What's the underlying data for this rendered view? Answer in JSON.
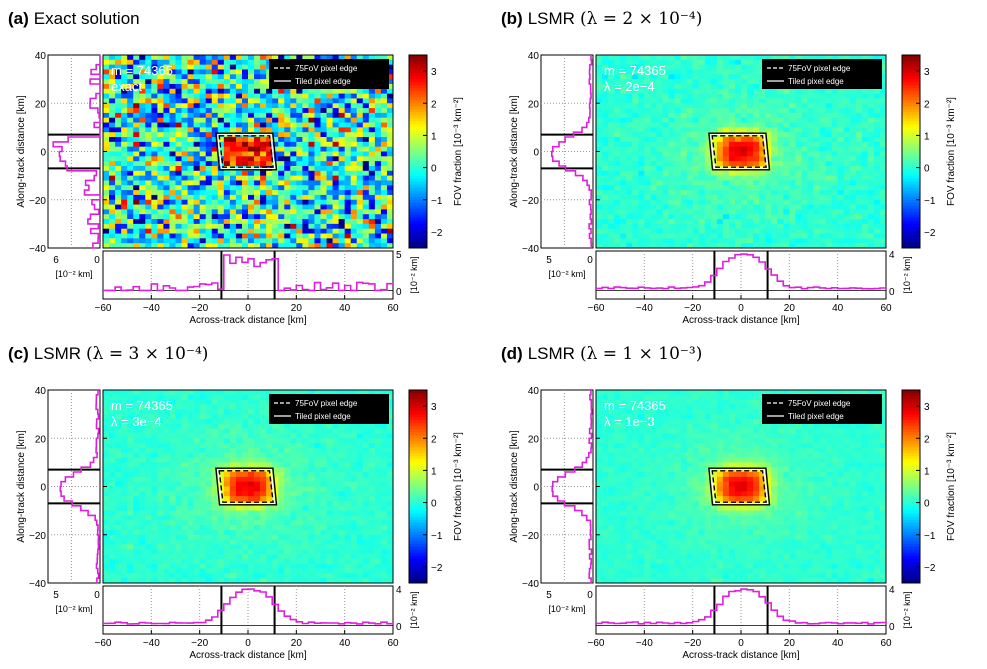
{
  "chart_data": [
    {
      "type": "heatmap",
      "panel_label": "(a)",
      "title": "Exact solution",
      "title_lambda": "",
      "annot_lines": [
        "m = 74365",
        "exact"
      ],
      "noise": "high",
      "xlabel": "Across-track distance [km]",
      "ylabel": "Along-track distance [km]",
      "xlim": [
        -60,
        60
      ],
      "ylim": [
        -40,
        40
      ],
      "xticks": [
        "−60",
        "−40",
        "−20",
        "0",
        "20",
        "40",
        "60"
      ],
      "yticks": [
        "40",
        "20",
        "0",
        "−20",
        "−40"
      ],
      "colorbar_label": "FOV fraction [10⁻³ km⁻²]",
      "colorbar_ticks": [
        "3",
        "2",
        "1",
        "0",
        "−1",
        "−2"
      ],
      "colorbar_range": [
        -2.5,
        3.5
      ],
      "legend": [
        "75FoV pixel edge",
        "Tiled pixel edge"
      ],
      "left_profile_ticks": [
        "6",
        "0"
      ],
      "left_profile_max": 6,
      "bottom_profile_ticks": [
        "5",
        "0"
      ],
      "bottom_profile_max": 5,
      "profile_unit": "[10⁻² km]"
    },
    {
      "type": "heatmap",
      "panel_label": "(b)",
      "title": "LSMR",
      "title_lambda": "(λ = 2 × 10⁻⁴)",
      "annot_lines": [
        "m = 74365",
        "λ = 2e−4"
      ],
      "noise": "low",
      "xlabel": "Across-track distance [km]",
      "ylabel": "Along-track distance [km]",
      "xlim": [
        -60,
        60
      ],
      "ylim": [
        -40,
        40
      ],
      "xticks": [
        "−60",
        "−40",
        "−20",
        "0",
        "20",
        "40",
        "60"
      ],
      "yticks": [
        "40",
        "20",
        "0",
        "−20",
        "−40"
      ],
      "colorbar_label": "FOV fraction [10⁻³ km⁻²]",
      "colorbar_ticks": [
        "3",
        "2",
        "1",
        "0",
        "−1",
        "−2"
      ],
      "colorbar_range": [
        -2.5,
        3.5
      ],
      "legend": [
        "75FoV pixel edge",
        "Tiled pixel edge"
      ],
      "left_profile_ticks": [
        "5",
        "0"
      ],
      "left_profile_max": 5,
      "bottom_profile_ticks": [
        "4",
        "0"
      ],
      "bottom_profile_max": 4,
      "profile_unit": "[10⁻² km]"
    },
    {
      "type": "heatmap",
      "panel_label": "(c)",
      "title": "LSMR",
      "title_lambda": "(λ = 3 × 10⁻⁴)",
      "annot_lines": [
        "m = 74365",
        "λ = 3e−4"
      ],
      "noise": "lower",
      "xlabel": "Across-track distance [km]",
      "ylabel": "Along-track distance [km]",
      "xlim": [
        -60,
        60
      ],
      "ylim": [
        -40,
        40
      ],
      "xticks": [
        "−60",
        "−40",
        "−20",
        "0",
        "20",
        "40",
        "60"
      ],
      "yticks": [
        "40",
        "20",
        "0",
        "−20",
        "−40"
      ],
      "colorbar_label": "FOV fraction [10⁻³ km⁻²]",
      "colorbar_ticks": [
        "3",
        "2",
        "1",
        "0",
        "−1",
        "−2"
      ],
      "colorbar_range": [
        -2.5,
        3.5
      ],
      "legend": [
        "75FoV pixel edge",
        "Tiled pixel edge"
      ],
      "left_profile_ticks": [
        "5",
        "0"
      ],
      "left_profile_max": 5,
      "bottom_profile_ticks": [
        "4",
        "0"
      ],
      "bottom_profile_max": 4,
      "profile_unit": "[10⁻² km]"
    },
    {
      "type": "heatmap",
      "panel_label": "(d)",
      "title": "LSMR",
      "title_lambda": "(λ = 1 × 10⁻³)",
      "annot_lines": [
        "m = 74365",
        "λ = 1e−3"
      ],
      "noise": "lowest",
      "xlabel": "Across-track distance [km]",
      "ylabel": "Along-track distance [km]",
      "xlim": [
        -60,
        60
      ],
      "ylim": [
        -40,
        40
      ],
      "xticks": [
        "−60",
        "−40",
        "−20",
        "0",
        "20",
        "40",
        "60"
      ],
      "yticks": [
        "40",
        "20",
        "0",
        "−20",
        "−40"
      ],
      "colorbar_label": "FOV fraction [10⁻³ km⁻²]",
      "colorbar_ticks": [
        "3",
        "2",
        "1",
        "0",
        "−1",
        "−2"
      ],
      "colorbar_range": [
        -2.5,
        3.5
      ],
      "legend": [
        "75FoV pixel edge",
        "Tiled pixel edge"
      ],
      "left_profile_ticks": [
        "5",
        "0"
      ],
      "left_profile_max": 5,
      "bottom_profile_ticks": [
        "4",
        "0"
      ],
      "bottom_profile_max": 4,
      "profile_unit": "[10⁻² km]"
    }
  ],
  "colors": {
    "profile_line": "#e01ee0",
    "pixel_edge": "#000000",
    "annotation_text": "#ffffff"
  }
}
